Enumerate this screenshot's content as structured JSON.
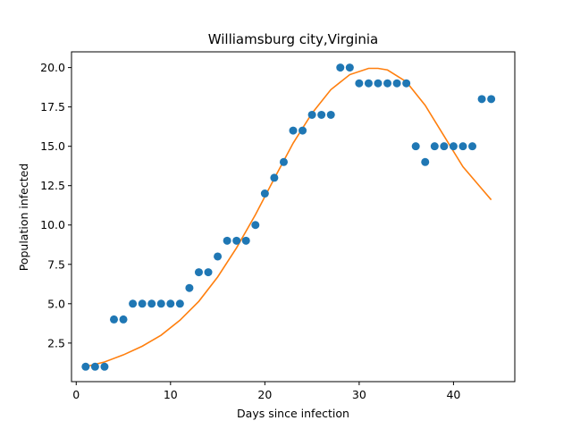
{
  "chart_data": {
    "type": "scatter",
    "title": "Williamsburg city,Virginia",
    "xlabel": "Days since infection",
    "ylabel": "Population infected",
    "xlim": [
      -0.5,
      46.5
    ],
    "ylim": [
      0.05,
      21.0
    ],
    "xticks": [
      0,
      10,
      20,
      30,
      40
    ],
    "xtick_labels": [
      "0",
      "10",
      "20",
      "30",
      "40"
    ],
    "yticks": [
      2.5,
      5.0,
      7.5,
      10.0,
      12.5,
      15.0,
      17.5,
      20.0
    ],
    "ytick_labels": [
      "2.5",
      "5.0",
      "7.5",
      "10.0",
      "12.5",
      "15.0",
      "17.5",
      "20.0"
    ],
    "grid": false,
    "series": [
      {
        "kind": "scatter",
        "color": "#1f77b4",
        "x": [
          1,
          2,
          3,
          4,
          5,
          6,
          7,
          8,
          9,
          10,
          11,
          12,
          13,
          14,
          15,
          16,
          17,
          18,
          19,
          20,
          21,
          22,
          23,
          24,
          25,
          26,
          27,
          28,
          29,
          30,
          31,
          32,
          33,
          34,
          35,
          36,
          37,
          38,
          39,
          40,
          41,
          42,
          43,
          44
        ],
        "y": [
          1,
          1,
          1,
          4,
          4,
          5,
          5,
          5,
          5,
          5,
          5,
          6,
          7,
          7,
          8,
          9,
          9,
          9,
          10,
          12,
          13,
          14,
          16,
          16,
          17,
          17,
          17,
          20,
          20,
          19,
          19,
          19,
          19,
          19,
          19,
          15,
          14,
          15,
          15,
          15,
          15,
          15,
          18,
          18
        ]
      },
      {
        "kind": "line",
        "color": "#ff7f0e",
        "x": [
          1,
          3,
          5,
          7,
          9,
          11,
          13,
          15,
          17,
          19,
          21,
          23,
          25,
          27,
          29,
          31,
          32,
          33,
          35,
          37,
          39,
          41,
          43,
          44
        ],
        "y": [
          1.0,
          1.3,
          1.75,
          2.3,
          3.0,
          3.95,
          5.15,
          6.7,
          8.55,
          10.65,
          12.95,
          15.2,
          17.1,
          18.6,
          19.55,
          19.95,
          19.95,
          19.85,
          19.1,
          17.6,
          15.65,
          13.7,
          12.3,
          11.6
        ]
      }
    ]
  }
}
